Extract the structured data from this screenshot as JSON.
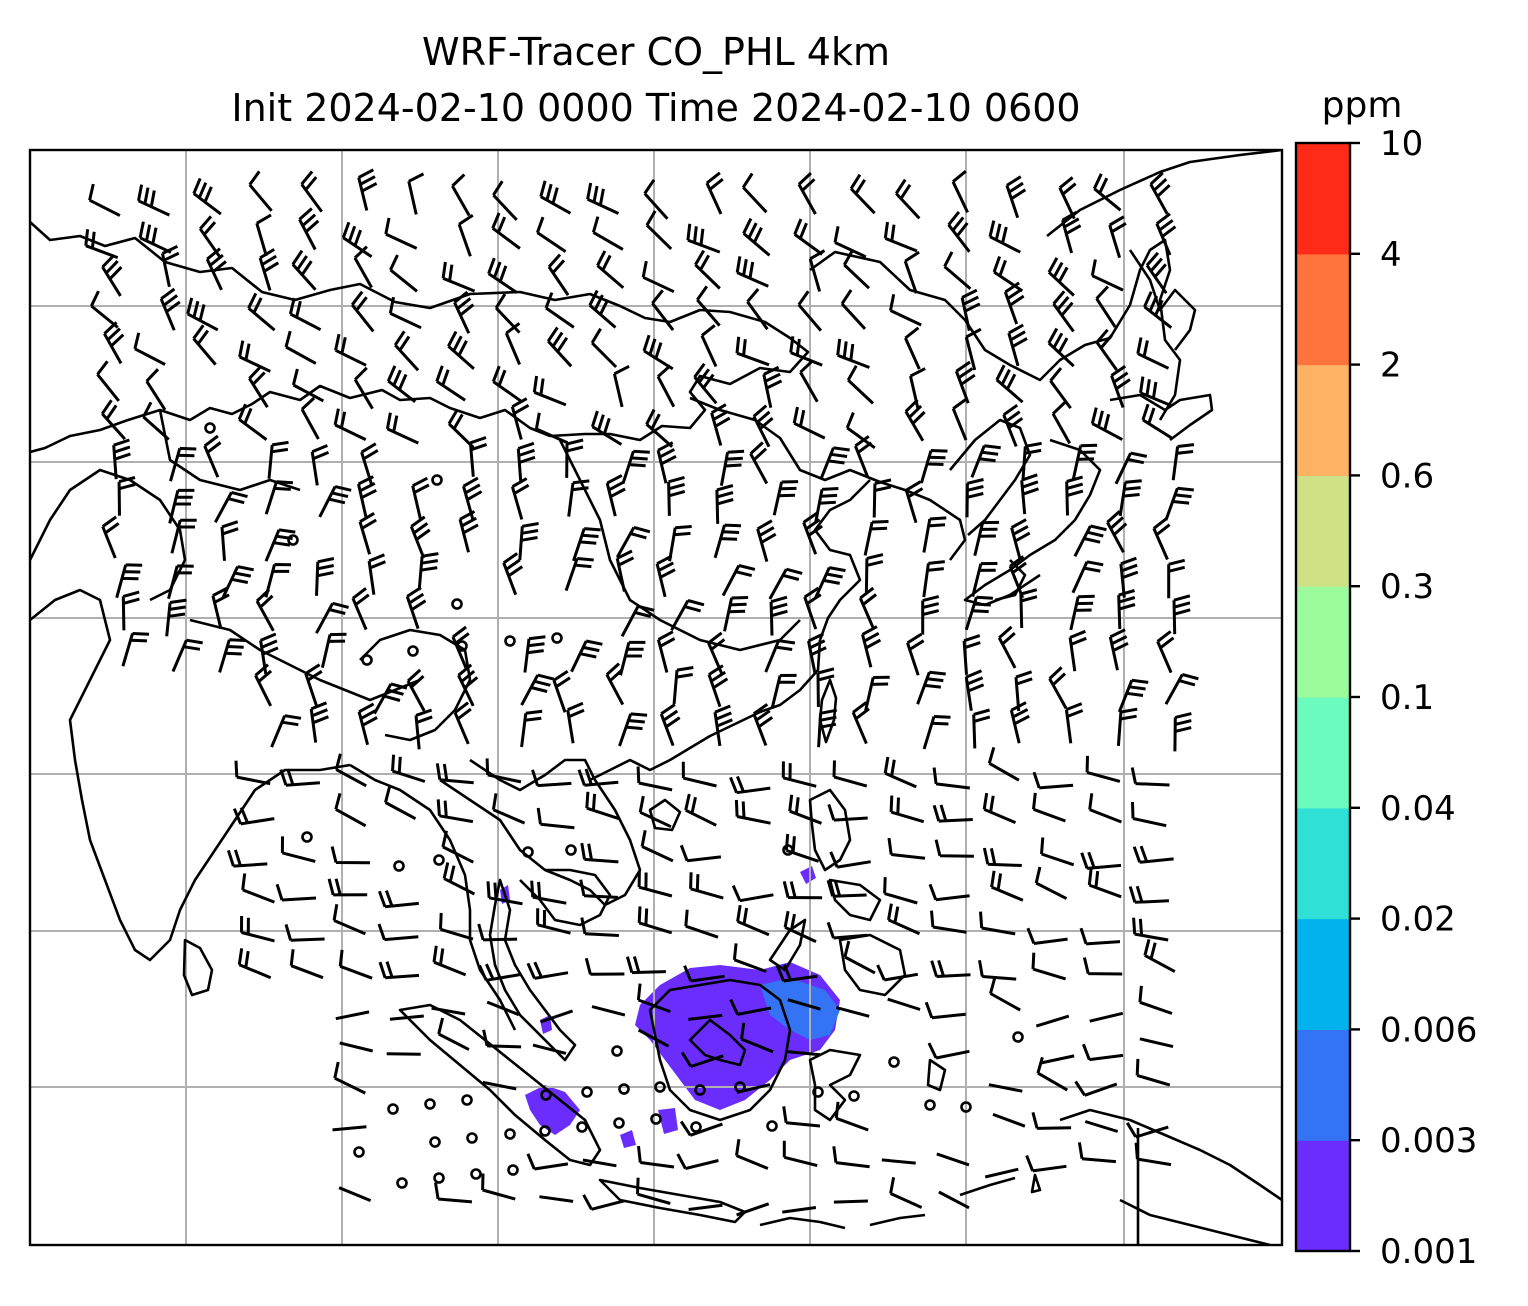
{
  "title": {
    "line1": "WRF-Tracer CO_PHL 4km",
    "line2": "Init 2024-02-10 0000 Time 2024-02-10 0600"
  },
  "colorbar": {
    "unit": "ppm",
    "levels": [
      "0.001",
      "0.003",
      "0.006",
      "0.02",
      "0.04",
      "0.1",
      "0.3",
      "0.6",
      "2",
      "4",
      "10"
    ],
    "colors": [
      "#6a2dfb",
      "#3373f4",
      "#00b3ec",
      "#2ee0d6",
      "#6cfbbf",
      "#9cfb9c",
      "#cfe187",
      "#fdb264",
      "#ff733c",
      "#ff2a17"
    ]
  },
  "map": {
    "gridlines": true,
    "coastline_color": "#000000",
    "field": "CO tracer concentration",
    "plume_color": "#6a2dfb",
    "plume_core_color": "#3373f4",
    "wind_barbs": true
  }
}
